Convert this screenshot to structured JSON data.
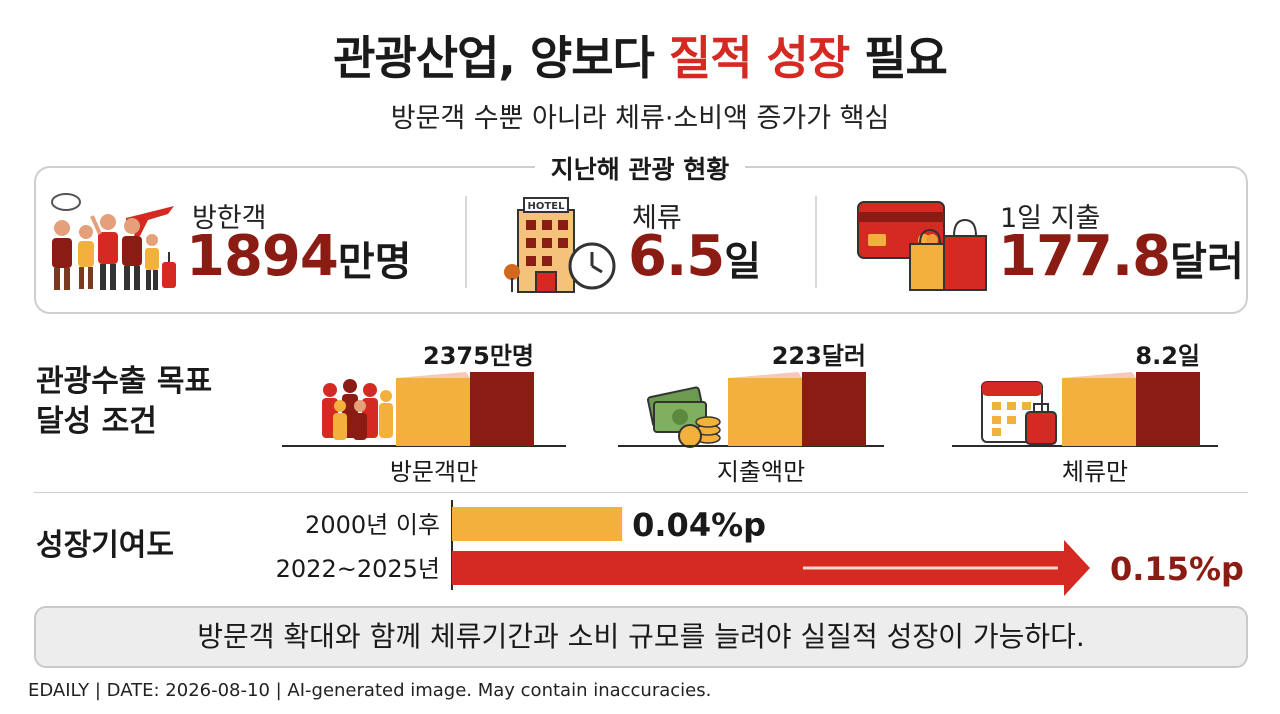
{
  "header": {
    "title_part1": "관광산업, 양보다 ",
    "title_accent": "질적 성장",
    "title_part2": " 필요",
    "subtitle": "방문객 수뿐 아니라 체류·소비액 증가가 핵심"
  },
  "last_year": {
    "section_label": "지난해 관광 현황",
    "stats": [
      {
        "label": "방한객",
        "value": "1894",
        "unit": "만명",
        "icon": "tourists-icon"
      },
      {
        "label": "체류",
        "value": "6.5",
        "unit": "일",
        "icon": "hotel-clock-icon"
      },
      {
        "label": "1일 지출",
        "value": "177.8",
        "unit": "달러",
        "icon": "card-shopping-icon"
      }
    ],
    "hotel_sign": "HOTEL"
  },
  "export_goal": {
    "section_label_line1": "관광수출 목표",
    "section_label_line2": "달성 조건"
  },
  "growth": {
    "section_label": "성장기여도"
  },
  "bottom_message": "방문객 확대와 함께 체류기간과 소비 규모를 늘려야 실질적 성장이 가능하다.",
  "footer": "EDAILY | DATE: 2026-08-10  |  AI-generated image. May contain inaccuracies.",
  "colors": {
    "accent_red": "#d52a22",
    "dark_red": "#8b1c14",
    "gold": "#f2b13d"
  },
  "chart_data": [
    {
      "type": "bar",
      "groups": [
        {
          "caption": "방문객만",
          "target_label": "2375만명",
          "icon": "crowd-icon"
        },
        {
          "caption": "지출액만",
          "target_label": "223달러",
          "icon": "money-icon"
        },
        {
          "caption": "체류만",
          "target_label": "8.2일",
          "icon": "calendar-luggage-icon"
        }
      ]
    },
    {
      "type": "bar",
      "orientation": "horizontal",
      "categories": [
        "2000년 이후",
        "2022~2025년"
      ],
      "values": [
        0.04,
        0.15
      ],
      "value_labels": [
        "0.04%p",
        "0.15%p"
      ],
      "unit": "%p"
    }
  ]
}
